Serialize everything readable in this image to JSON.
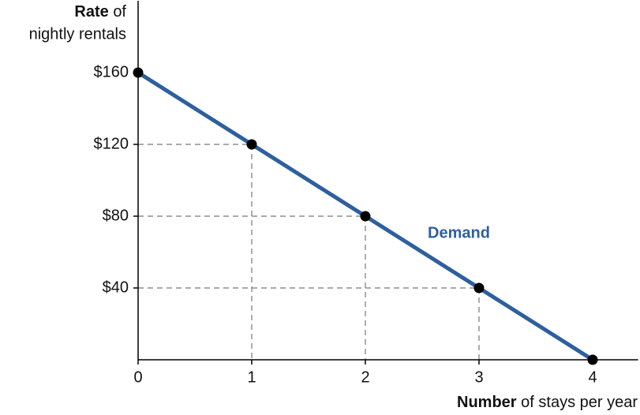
{
  "chart_data": {
    "type": "line",
    "ylabel": [
      "Rate",
      "of",
      "nightly rentals"
    ],
    "xlabel": [
      "Number",
      "of stays per year"
    ],
    "x": [
      0,
      1,
      2,
      3,
      4
    ],
    "series": [
      {
        "name": "Demand",
        "color": "#2e5f9e",
        "values": [
          160,
          120,
          80,
          40,
          0
        ]
      }
    ],
    "marker_color": "#000000",
    "xlim": [
      0,
      4.4
    ],
    "ylim": [
      0,
      200
    ],
    "xticks": [
      0,
      1,
      2,
      3,
      4
    ],
    "yticks": [
      {
        "value": 40,
        "label": "$40"
      },
      {
        "value": 80,
        "label": "$80"
      },
      {
        "value": 120,
        "label": "$120"
      },
      {
        "value": 160,
        "label": "$160"
      }
    ],
    "guides": true,
    "grid": false
  }
}
